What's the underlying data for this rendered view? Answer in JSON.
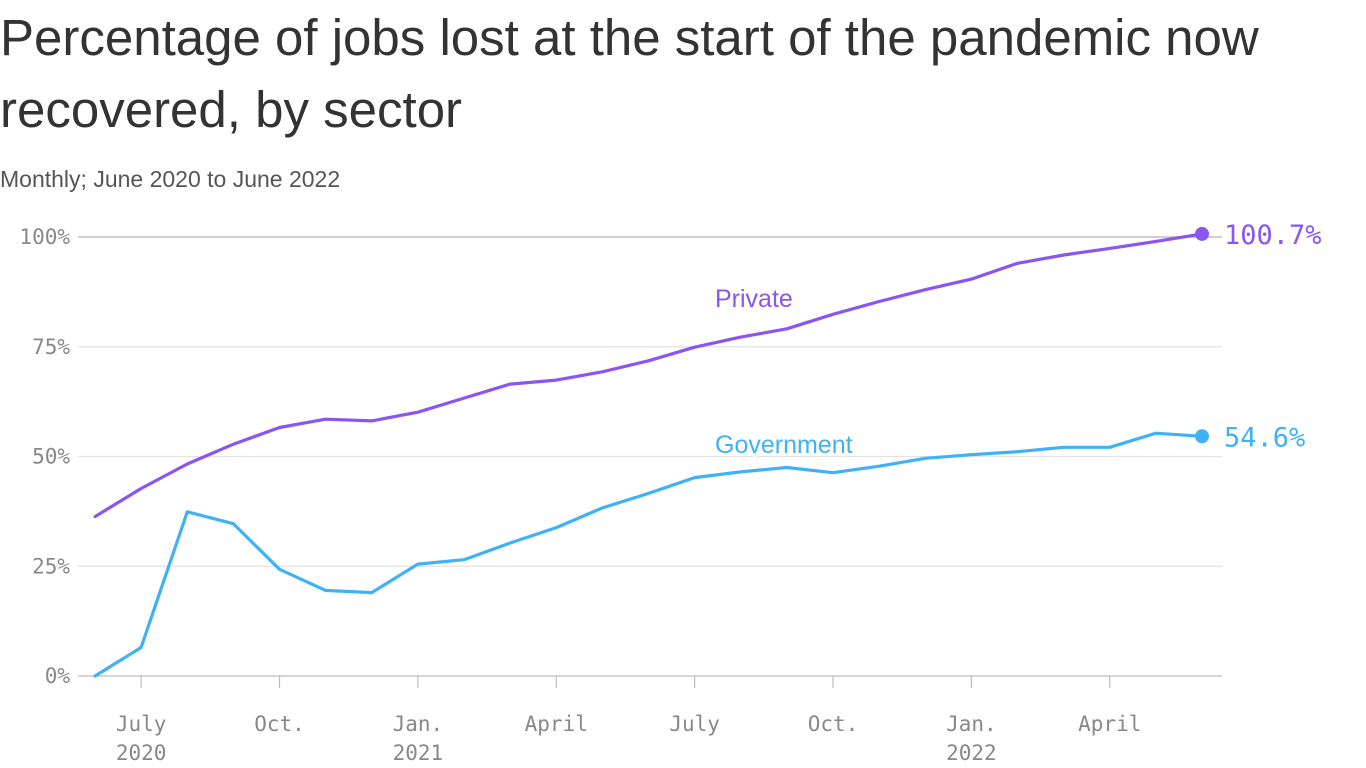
{
  "chart_data": {
    "type": "line",
    "title": "Percentage of jobs lost at the start of the pandemic now recovered, by sector",
    "subtitle": "Monthly; June 2020 to June 2022",
    "x": [
      "2020-06",
      "2020-07",
      "2020-08",
      "2020-09",
      "2020-10",
      "2020-11",
      "2020-12",
      "2021-01",
      "2021-02",
      "2021-03",
      "2021-04",
      "2021-05",
      "2021-06",
      "2021-07",
      "2021-08",
      "2021-09",
      "2021-10",
      "2021-11",
      "2021-12",
      "2022-01",
      "2022-02",
      "2022-03",
      "2022-04",
      "2022-05",
      "2022-06"
    ],
    "x_ticks": [
      {
        "x": "2020-07",
        "label": "July",
        "sublabel": "2020"
      },
      {
        "x": "2020-10",
        "label": "Oct.",
        "sublabel": ""
      },
      {
        "x": "2021-01",
        "label": "Jan.",
        "sublabel": "2021"
      },
      {
        "x": "2021-04",
        "label": "April",
        "sublabel": ""
      },
      {
        "x": "2021-07",
        "label": "July",
        "sublabel": ""
      },
      {
        "x": "2021-10",
        "label": "Oct.",
        "sublabel": ""
      },
      {
        "x": "2022-01",
        "label": "Jan.",
        "sublabel": "2022"
      },
      {
        "x": "2022-04",
        "label": "April",
        "sublabel": ""
      }
    ],
    "y_ticks": [
      {
        "value": 0,
        "label": "0%"
      },
      {
        "value": 25,
        "label": "25%"
      },
      {
        "value": 50,
        "label": "50%"
      },
      {
        "value": 75,
        "label": "75%"
      },
      {
        "value": 100,
        "label": "100%"
      }
    ],
    "ylim": [
      0,
      100
    ],
    "grid": "horizontal",
    "series": [
      {
        "name": "Private",
        "color": "#8a55f2",
        "end_label": "100.7%",
        "values": [
          36.3,
          42.7,
          48.3,
          52.8,
          56.6,
          58.5,
          58.1,
          60.1,
          63.3,
          66.5,
          67.4,
          69.3,
          71.8,
          74.9,
          77.2,
          79.1,
          82.4,
          85.3,
          88.0,
          90.4,
          94.0,
          95.9,
          97.4,
          99.0,
          100.7
        ]
      },
      {
        "name": "Government",
        "color": "#3fb2f5",
        "end_label": "54.6%",
        "values": [
          0.0,
          6.5,
          37.4,
          34.7,
          24.3,
          19.5,
          19.0,
          25.5,
          26.5,
          30.3,
          33.8,
          38.3,
          41.6,
          45.2,
          46.5,
          47.5,
          46.3,
          47.8,
          49.6,
          50.4,
          51.1,
          52.1,
          52.1,
          55.3,
          54.6
        ]
      }
    ]
  }
}
